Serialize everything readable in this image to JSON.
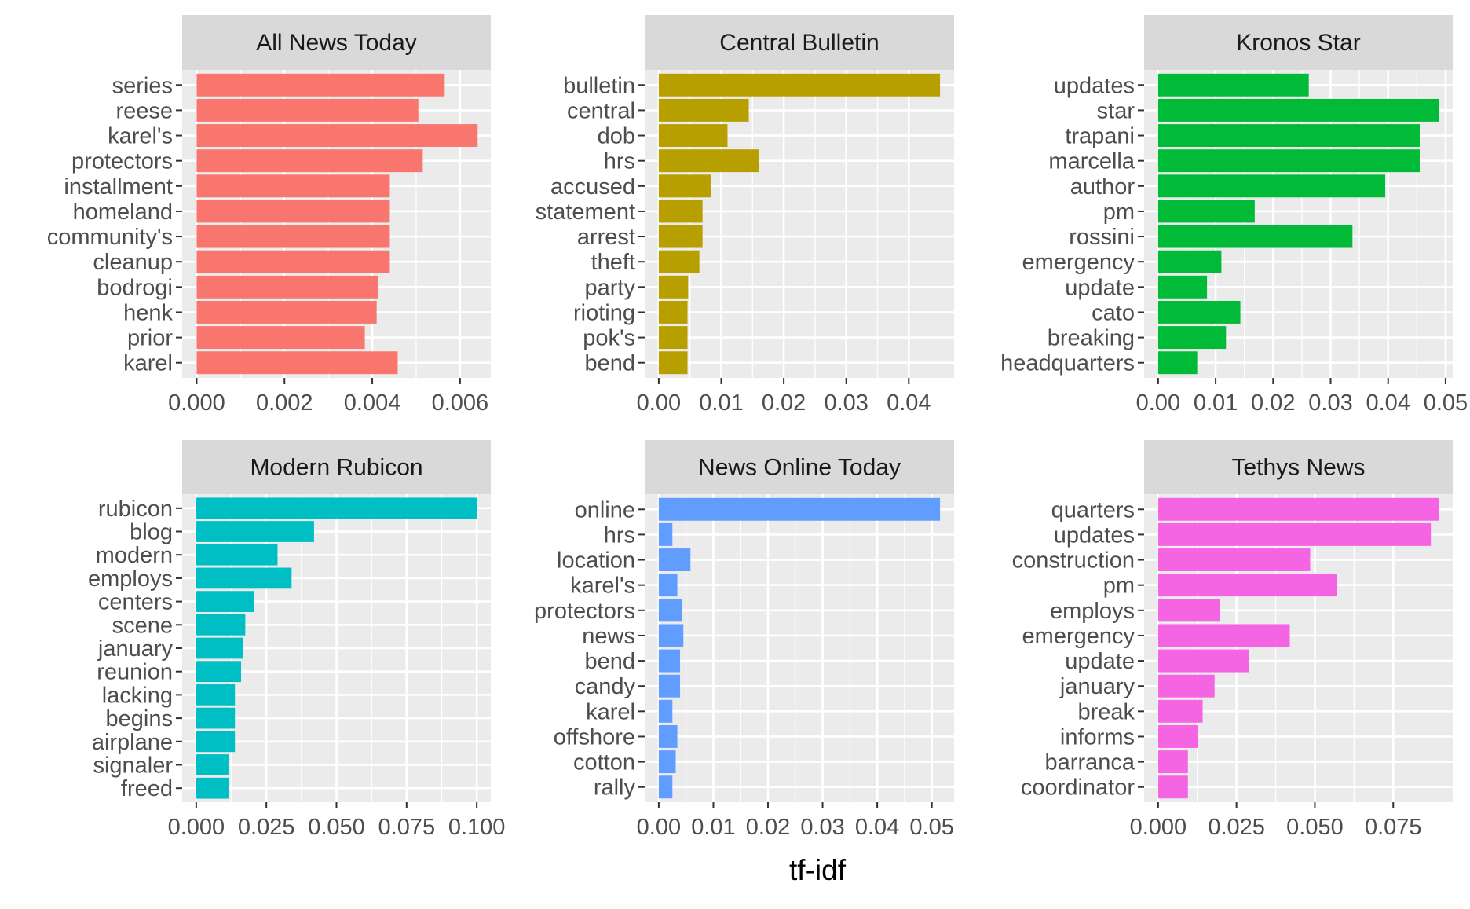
{
  "chart_data": {
    "type": "bar",
    "orientation": "horizontal",
    "layout": "facet-grid-2x3",
    "xlabel": "tf-idf",
    "ylabel": "",
    "legend": "none",
    "grid": true,
    "facets": [
      {
        "title": "All News Today",
        "color": "#F8766D",
        "categories": [
          "series",
          "reese",
          "karel's",
          "protectors",
          "installment",
          "homeland",
          "community's",
          "cleanup",
          "bodrogi",
          "henk",
          "prior",
          "karel"
        ],
        "values": [
          0.00565,
          0.00505,
          0.0064,
          0.00515,
          0.0044,
          0.0044,
          0.0044,
          0.0044,
          0.00413,
          0.0041,
          0.00383,
          0.00458
        ],
        "xlim": [
          -0.00033,
          0.0067
        ],
        "ticks": [
          0.0,
          0.002,
          0.004,
          0.006
        ],
        "tick_labels": [
          "0.000",
          "0.002",
          "0.004",
          "0.006"
        ]
      },
      {
        "title": "Central Bulletin",
        "color": "#B79F00",
        "categories": [
          "bulletin",
          "central",
          "dob",
          "hrs",
          "accused",
          "statement",
          "arrest",
          "theft",
          "party",
          "rioting",
          "pok's",
          "bend"
        ],
        "values": [
          0.045,
          0.0144,
          0.011,
          0.016,
          0.0083,
          0.007,
          0.007,
          0.0065,
          0.0047,
          0.0046,
          0.0046,
          0.0046
        ],
        "xlim": [
          -0.00225,
          0.04725
        ],
        "ticks": [
          0.0,
          0.01,
          0.02,
          0.03,
          0.04
        ],
        "tick_labels": [
          "0.00",
          "0.01",
          "0.02",
          "0.03",
          "0.04"
        ]
      },
      {
        "title": "Kronos Star",
        "color": "#00BA38",
        "categories": [
          "updates",
          "star",
          "trapani",
          "marcella",
          "author",
          "pm",
          "rossini",
          "emergency",
          "update",
          "cato",
          "breaking",
          "headquarters"
        ],
        "values": [
          0.0262,
          0.0488,
          0.0455,
          0.0455,
          0.0395,
          0.0168,
          0.0338,
          0.011,
          0.0085,
          0.0143,
          0.0118,
          0.0068
        ],
        "xlim": [
          -0.00244,
          0.05124
        ],
        "ticks": [
          0.0,
          0.01,
          0.02,
          0.03,
          0.04,
          0.05
        ],
        "tick_labels": [
          "0.00",
          "0.01",
          "0.02",
          "0.03",
          "0.04",
          "0.05"
        ]
      },
      {
        "title": "Modern Rubicon",
        "color": "#00BFC4",
        "categories": [
          "rubicon",
          "blog",
          "modern",
          "employs",
          "centers",
          "scene",
          "january",
          "reunion",
          "lacking",
          "begins",
          "airplane",
          "signaler",
          "freed"
        ],
        "values": [
          0.1,
          0.042,
          0.029,
          0.034,
          0.0205,
          0.0175,
          0.0168,
          0.016,
          0.0138,
          0.0138,
          0.0138,
          0.0115,
          0.0115
        ],
        "xlim": [
          -0.005,
          0.105
        ],
        "ticks": [
          0.0,
          0.025,
          0.05,
          0.075,
          0.1
        ],
        "tick_labels": [
          "0.000",
          "0.025",
          "0.050",
          "0.075",
          "0.100"
        ]
      },
      {
        "title": "News Online Today",
        "color": "#619CFF",
        "categories": [
          "online",
          "hrs",
          "location",
          "karel's",
          "protectors",
          "news",
          "bend",
          "candy",
          "karel",
          "offshore",
          "cotton",
          "rally"
        ],
        "values": [
          0.0515,
          0.0025,
          0.0058,
          0.0034,
          0.0042,
          0.0045,
          0.0039,
          0.0039,
          0.0025,
          0.0034,
          0.0031,
          0.0025
        ],
        "xlim": [
          -0.002575,
          0.054075
        ],
        "ticks": [
          0.0,
          0.01,
          0.02,
          0.03,
          0.04,
          0.05
        ],
        "tick_labels": [
          "0.00",
          "0.01",
          "0.02",
          "0.03",
          "0.04",
          "0.05"
        ]
      },
      {
        "title": "Tethys News",
        "color": "#F564E3",
        "categories": [
          "quarters",
          "updates",
          "construction",
          "pm",
          "employs",
          "emergency",
          "update",
          "january",
          "break",
          "informs",
          "barranca",
          "coordinator"
        ],
        "values": [
          0.0895,
          0.087,
          0.0485,
          0.057,
          0.0198,
          0.042,
          0.029,
          0.018,
          0.0142,
          0.0128,
          0.0095,
          0.0095
        ],
        "xlim": [
          -0.004475,
          0.093975
        ],
        "ticks": [
          0.0,
          0.025,
          0.05,
          0.075
        ],
        "tick_labels": [
          "0.000",
          "0.025",
          "0.050",
          "0.075"
        ]
      }
    ]
  }
}
